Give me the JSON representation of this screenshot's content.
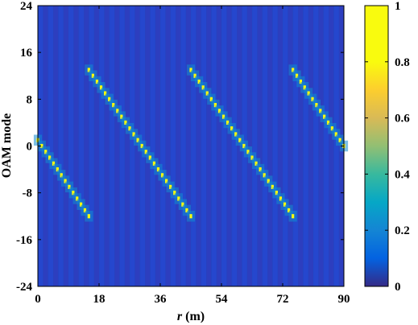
{
  "chart_data": {
    "type": "heatmap",
    "title": "",
    "xlabel_var": "r",
    "xlabel_unit": " (m)",
    "ylabel": "OAM mode",
    "xlim": [
      0,
      90
    ],
    "ylim": [
      -24,
      24
    ],
    "xticks": [
      "0",
      "18",
      "36",
      "54",
      "72",
      "90"
    ],
    "yticks": [
      "24",
      "16",
      "8",
      "0",
      "-8",
      "-16",
      "-24"
    ],
    "colorbar": {
      "range": [
        0,
        1
      ],
      "ticks": [
        "1",
        "0.8",
        "0.6",
        "0.4",
        "0.2",
        "0"
      ],
      "colormap": "parula"
    },
    "background_value": 0.05,
    "segments": [
      {
        "r_start": 0,
        "r_end": 15,
        "mode_start": 1,
        "mode_end": -12
      },
      {
        "r_start": 15,
        "r_end": 45,
        "mode_start": 13,
        "mode_end": -12
      },
      {
        "r_start": 45,
        "r_end": 75,
        "mode_start": 13,
        "mode_end": -12
      },
      {
        "r_start": 75,
        "r_end": 90,
        "mode_start": 13,
        "mode_end": 0
      }
    ],
    "peak_value": 0.92
  }
}
